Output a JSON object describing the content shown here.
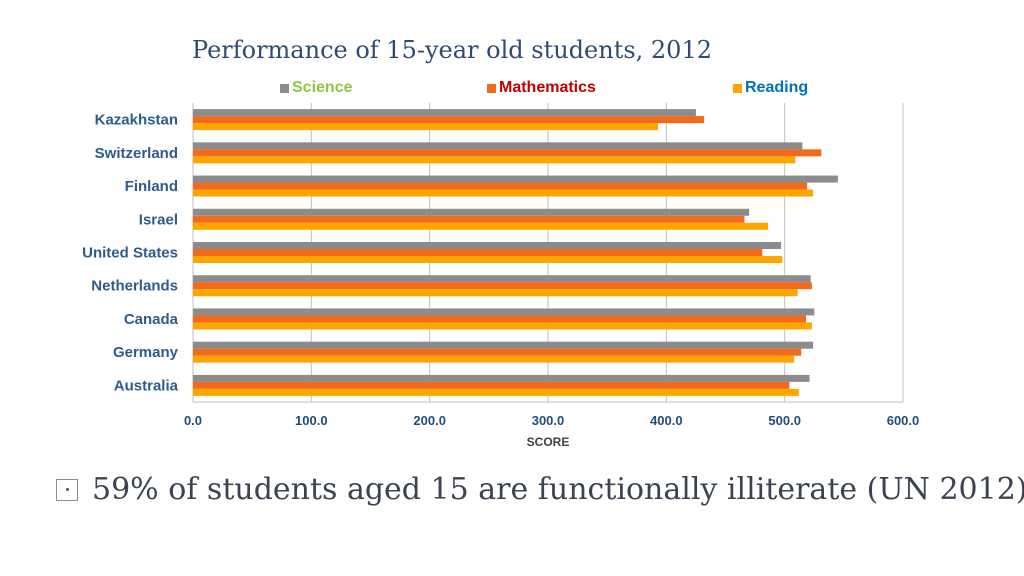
{
  "chart_data": {
    "type": "bar",
    "orientation": "horizontal",
    "title": "Performance of 15-year old students, 2012",
    "xlabel": "SCORE",
    "ylabel": "",
    "xlim": [
      0,
      600
    ],
    "xticks": [
      "0.0",
      "100.0",
      "200.0",
      "300.0",
      "400.0",
      "500.0",
      "600.0"
    ],
    "grid": true,
    "legend_position": "top",
    "categories": [
      "Kazakhstan",
      "Switzerland",
      "Finland",
      "Israel",
      "United States",
      "Netherlands",
      "Canada",
      "Germany",
      "Australia"
    ],
    "series": [
      {
        "name": "Science",
        "color": "#8c8c8c",
        "label_color": "#8dc63f",
        "values": [
          425,
          515,
          545,
          470,
          497,
          522,
          525,
          524,
          521
        ]
      },
      {
        "name": "Mathematics",
        "color": "#f26b1d",
        "label_color": "#c00000",
        "values": [
          432,
          531,
          519,
          466,
          481,
          523,
          518,
          514,
          504
        ]
      },
      {
        "name": "Reading",
        "color": "#ffa500",
        "label_color": "#0070c0",
        "values": [
          393,
          509,
          524,
          486,
          498,
          511,
          523,
          508,
          512
        ]
      }
    ]
  },
  "footer": {
    "text": "59% of students aged 15 are functionally illiterate (UN 2012)"
  }
}
